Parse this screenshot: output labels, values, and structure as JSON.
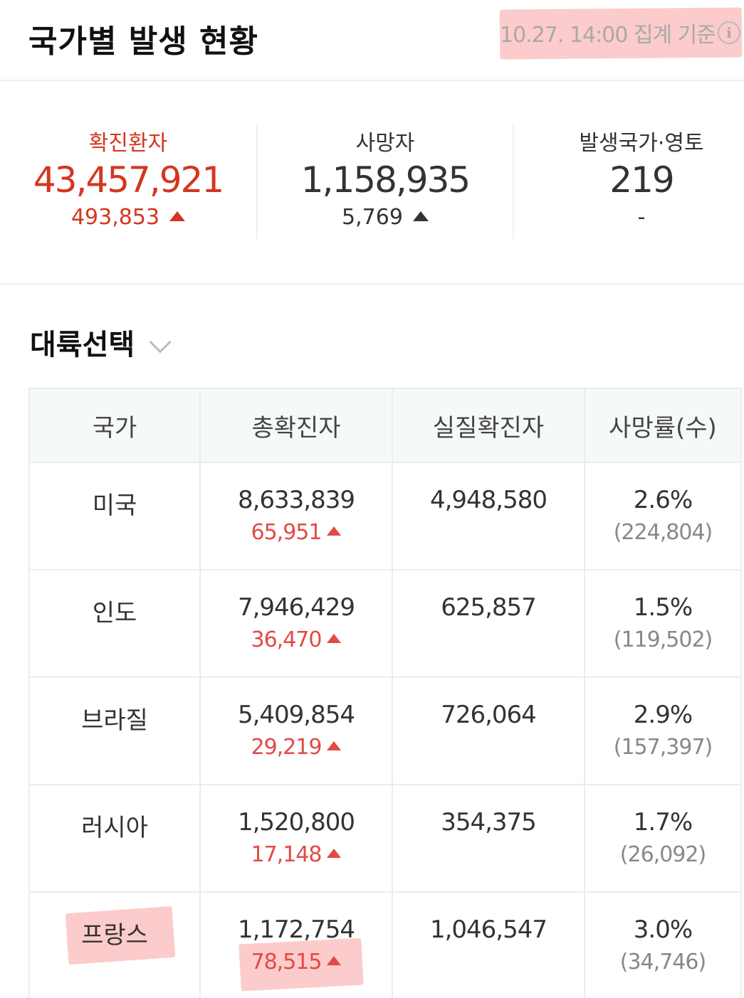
{
  "header": {
    "title": "국가별 발생 현황",
    "basis": "10.27. 14:00 집계 기준"
  },
  "stats": [
    {
      "label": "확진환자",
      "value": "43,457,921",
      "delta": "493,853"
    },
    {
      "label": "사망자",
      "value": "1,158,935",
      "delta": "5,769"
    },
    {
      "label": "발생국가·영토",
      "value": "219",
      "delta": "-"
    }
  ],
  "continent": {
    "label": "대륙선택"
  },
  "table": {
    "headers": [
      "국가",
      "총확진자",
      "실질확진자",
      "사망률(수)"
    ],
    "rows": [
      {
        "country": "미국",
        "total": "8,633,839",
        "new": "65,951",
        "active": "4,948,580",
        "rate": "2.6%",
        "deaths": "(224,804)"
      },
      {
        "country": "인도",
        "total": "7,946,429",
        "new": "36,470",
        "active": "625,857",
        "rate": "1.5%",
        "deaths": "(119,502)"
      },
      {
        "country": "브라질",
        "total": "5,409,854",
        "new": "29,219",
        "active": "726,064",
        "rate": "2.9%",
        "deaths": "(157,397)"
      },
      {
        "country": "러시아",
        "total": "1,520,800",
        "new": "17,148",
        "active": "354,375",
        "rate": "1.7%",
        "deaths": "(26,092)"
      },
      {
        "country": "프랑스",
        "total": "1,172,754",
        "new": "78,515",
        "active": "1,046,547",
        "rate": "3.0%",
        "deaths": "(34,746)"
      }
    ]
  },
  "colors": {
    "accent": "#d4361f",
    "delta_red": "#e14a45",
    "highlight": "#faa0a0"
  },
  "icons": {
    "info": "info-icon",
    "chevron": "chevron-down-icon",
    "increase": "triangle-up-icon"
  }
}
